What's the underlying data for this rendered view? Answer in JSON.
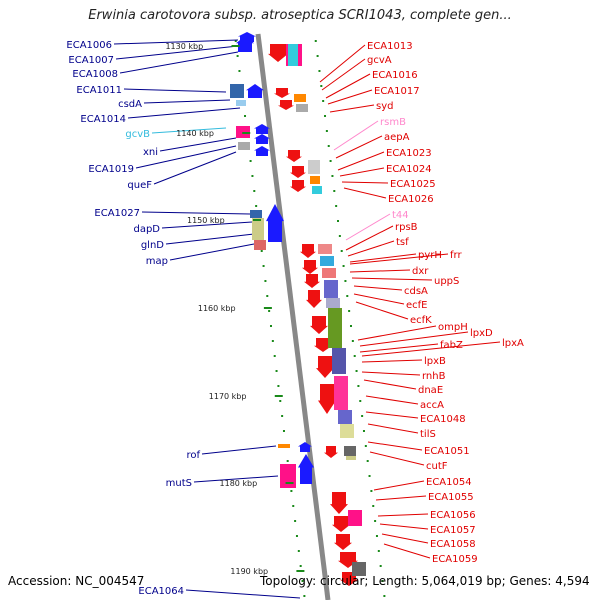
{
  "title": "Erwinia carotovora subsp. atroseptica SCRI1043, complete gen...",
  "accession": "Accession: NC_004547",
  "summary": "Topology: circular; Length: 5,064,019 bp; Genes: 4,594",
  "colors": {
    "left_label": "#00008b",
    "right_label": "#e00000",
    "pink_label": "#ff88cc",
    "cyan_label": "#33bbdd",
    "strand_forward": "#1a1aff",
    "strand_reverse": "#ee1111",
    "backbone": "#888888",
    "tick": "#1a8a1a"
  },
  "scale": [
    {
      "label": "1130 kbp"
    },
    {
      "label": "1140 kbp"
    },
    {
      "label": "1150 kbp"
    },
    {
      "label": "1160 kbp"
    },
    {
      "label": "1170 kbp"
    },
    {
      "label": "1180 kbp"
    },
    {
      "label": "1190 kbp"
    }
  ],
  "left_labels": [
    {
      "text": "ECA1006",
      "color": "#00008b"
    },
    {
      "text": "ECA1007",
      "color": "#00008b"
    },
    {
      "text": "ECA1008",
      "color": "#00008b"
    },
    {
      "text": "ECA1011",
      "color": "#00008b"
    },
    {
      "text": "csdA",
      "color": "#00008b"
    },
    {
      "text": "ECA1014",
      "color": "#00008b"
    },
    {
      "text": "gcvB",
      "color": "#33bbdd"
    },
    {
      "text": "xni",
      "color": "#00008b"
    },
    {
      "text": "ECA1019",
      "color": "#00008b"
    },
    {
      "text": "queF",
      "color": "#00008b"
    },
    {
      "text": "ECA1027",
      "color": "#00008b"
    },
    {
      "text": "dapD",
      "color": "#00008b"
    },
    {
      "text": "glnD",
      "color": "#00008b"
    },
    {
      "text": "map",
      "color": "#00008b"
    },
    {
      "text": "rof",
      "color": "#00008b"
    },
    {
      "text": "mutS",
      "color": "#00008b"
    },
    {
      "text": "ECA1064",
      "color": "#00008b"
    }
  ],
  "right_labels": [
    {
      "text": "ECA1013",
      "color": "#e00000"
    },
    {
      "text": "gcvA",
      "color": "#e00000"
    },
    {
      "text": "ECA1016",
      "color": "#e00000"
    },
    {
      "text": "ECA1017",
      "color": "#e00000"
    },
    {
      "text": "syd",
      "color": "#e00000"
    },
    {
      "text": "rsmB",
      "color": "#ff88cc"
    },
    {
      "text": "aepA",
      "color": "#e00000"
    },
    {
      "text": "ECA1023",
      "color": "#e00000"
    },
    {
      "text": "ECA1024",
      "color": "#e00000"
    },
    {
      "text": "ECA1025",
      "color": "#e00000"
    },
    {
      "text": "ECA1026",
      "color": "#e00000"
    },
    {
      "text": "t44",
      "color": "#ff88cc"
    },
    {
      "text": "rpsB",
      "color": "#e00000"
    },
    {
      "text": "tsf",
      "color": "#e00000"
    },
    {
      "text": "pyrH",
      "color": "#e00000"
    },
    {
      "text": "frr",
      "color": "#e00000"
    },
    {
      "text": "dxr",
      "color": "#e00000"
    },
    {
      "text": "uppS",
      "color": "#e00000"
    },
    {
      "text": "cdsA",
      "color": "#e00000"
    },
    {
      "text": "ecfE",
      "color": "#e00000"
    },
    {
      "text": "ecfK",
      "color": "#e00000"
    },
    {
      "text": "ompH",
      "color": "#e00000"
    },
    {
      "text": "lpxD",
      "color": "#e00000"
    },
    {
      "text": "fabZ",
      "color": "#e00000"
    },
    {
      "text": "lpxA",
      "color": "#e00000"
    },
    {
      "text": "lpxB",
      "color": "#e00000"
    },
    {
      "text": "rnhB",
      "color": "#e00000"
    },
    {
      "text": "dnaE",
      "color": "#e00000"
    },
    {
      "text": "accA",
      "color": "#e00000"
    },
    {
      "text": "ECA1048",
      "color": "#e00000"
    },
    {
      "text": "tilS",
      "color": "#e00000"
    },
    {
      "text": "ECA1051",
      "color": "#e00000"
    },
    {
      "text": "cutF",
      "color": "#e00000"
    },
    {
      "text": "ECA1054",
      "color": "#e00000"
    },
    {
      "text": "ECA1055",
      "color": "#e00000"
    },
    {
      "text": "ECA1056",
      "color": "#e00000"
    },
    {
      "text": "ECA1057",
      "color": "#e00000"
    },
    {
      "text": "ECA1058",
      "color": "#e00000"
    },
    {
      "text": "ECA1059",
      "color": "#e00000"
    }
  ]
}
